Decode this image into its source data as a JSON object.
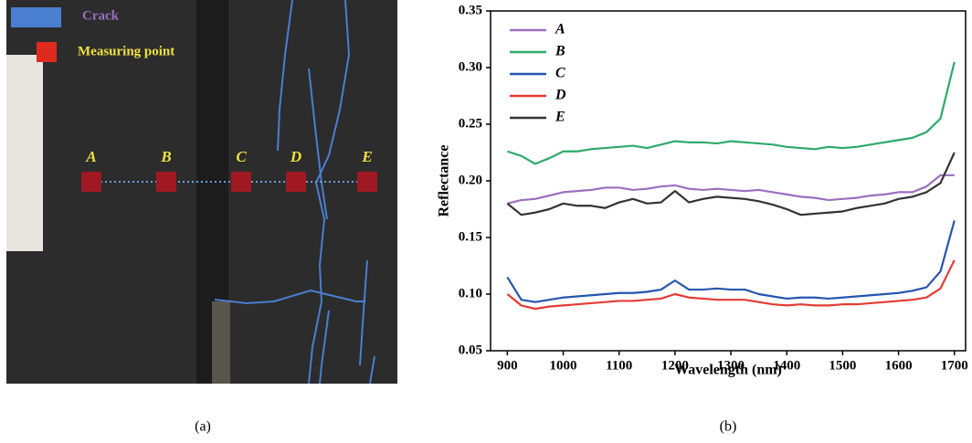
{
  "panel_a": {
    "legend": [
      "Crack",
      "Measuring point"
    ],
    "points": [
      "A",
      "B",
      "C",
      "D",
      "E"
    ]
  },
  "captions": [
    "(a)",
    "(b)"
  ],
  "chart_data": {
    "type": "line",
    "x_label": "Wavelength (nm)",
    "y_label": "Reflectance",
    "x": [
      900,
      925,
      950,
      975,
      1000,
      1025,
      1050,
      1075,
      1100,
      1125,
      1150,
      1175,
      1200,
      1225,
      1250,
      1275,
      1300,
      1325,
      1350,
      1375,
      1400,
      1425,
      1450,
      1475,
      1500,
      1525,
      1550,
      1575,
      1600,
      1625,
      1650,
      1675,
      1700
    ],
    "series": [
      {
        "name": "A",
        "color": "#9b6fbf",
        "values": [
          0.18,
          0.183,
          0.184,
          0.187,
          0.19,
          0.191,
          0.192,
          0.194,
          0.194,
          0.192,
          0.193,
          0.195,
          0.196,
          0.193,
          0.192,
          0.193,
          0.192,
          0.191,
          0.192,
          0.19,
          0.188,
          0.186,
          0.185,
          0.183,
          0.184,
          0.185,
          0.187,
          0.188,
          0.19,
          0.19,
          0.195,
          0.205,
          0.205
        ]
      },
      {
        "name": "B",
        "color": "#2eaa6a",
        "values": [
          0.226,
          0.222,
          0.215,
          0.22,
          0.226,
          0.226,
          0.228,
          0.229,
          0.23,
          0.231,
          0.229,
          0.232,
          0.235,
          0.234,
          0.234,
          0.233,
          0.235,
          0.234,
          0.233,
          0.232,
          0.23,
          0.229,
          0.228,
          0.23,
          0.229,
          0.23,
          0.232,
          0.234,
          0.236,
          0.238,
          0.243,
          0.255,
          0.305
        ]
      },
      {
        "name": "C",
        "color": "#2456b0",
        "values": [
          0.115,
          0.095,
          0.093,
          0.095,
          0.097,
          0.098,
          0.099,
          0.1,
          0.101,
          0.101,
          0.102,
          0.104,
          0.112,
          0.104,
          0.104,
          0.105,
          0.104,
          0.104,
          0.1,
          0.098,
          0.096,
          0.097,
          0.097,
          0.096,
          0.097,
          0.098,
          0.099,
          0.1,
          0.101,
          0.103,
          0.106,
          0.12,
          0.165
        ]
      },
      {
        "name": "D",
        "color": "#e53b33",
        "values": [
          0.1,
          0.09,
          0.087,
          0.089,
          0.09,
          0.091,
          0.092,
          0.093,
          0.094,
          0.094,
          0.095,
          0.096,
          0.1,
          0.097,
          0.096,
          0.095,
          0.095,
          0.095,
          0.093,
          0.091,
          0.09,
          0.091,
          0.09,
          0.09,
          0.091,
          0.091,
          0.092,
          0.093,
          0.094,
          0.095,
          0.097,
          0.105,
          0.13
        ]
      },
      {
        "name": "E",
        "color": "#333333",
        "values": [
          0.18,
          0.17,
          0.172,
          0.175,
          0.18,
          0.178,
          0.178,
          0.176,
          0.181,
          0.184,
          0.18,
          0.181,
          0.191,
          0.181,
          0.184,
          0.186,
          0.185,
          0.184,
          0.182,
          0.179,
          0.175,
          0.17,
          0.171,
          0.172,
          0.173,
          0.176,
          0.178,
          0.18,
          0.184,
          0.186,
          0.19,
          0.198,
          0.225
        ]
      }
    ],
    "xlim": [
      870,
      1720
    ],
    "xticks": [
      900,
      1000,
      1100,
      1200,
      1300,
      1400,
      1500,
      1600,
      1700
    ],
    "ylim": [
      0.05,
      0.35
    ],
    "yticks": [
      0.05,
      {
        "value": 0.1,
        "label": "0.10"
      },
      0.15,
      {
        "value": 0.2,
        "label": "0.20"
      },
      0.25,
      {
        "value": 0.3,
        "label": "0.30"
      },
      0.35
    ],
    "grid": false,
    "legend": "upper-left"
  }
}
